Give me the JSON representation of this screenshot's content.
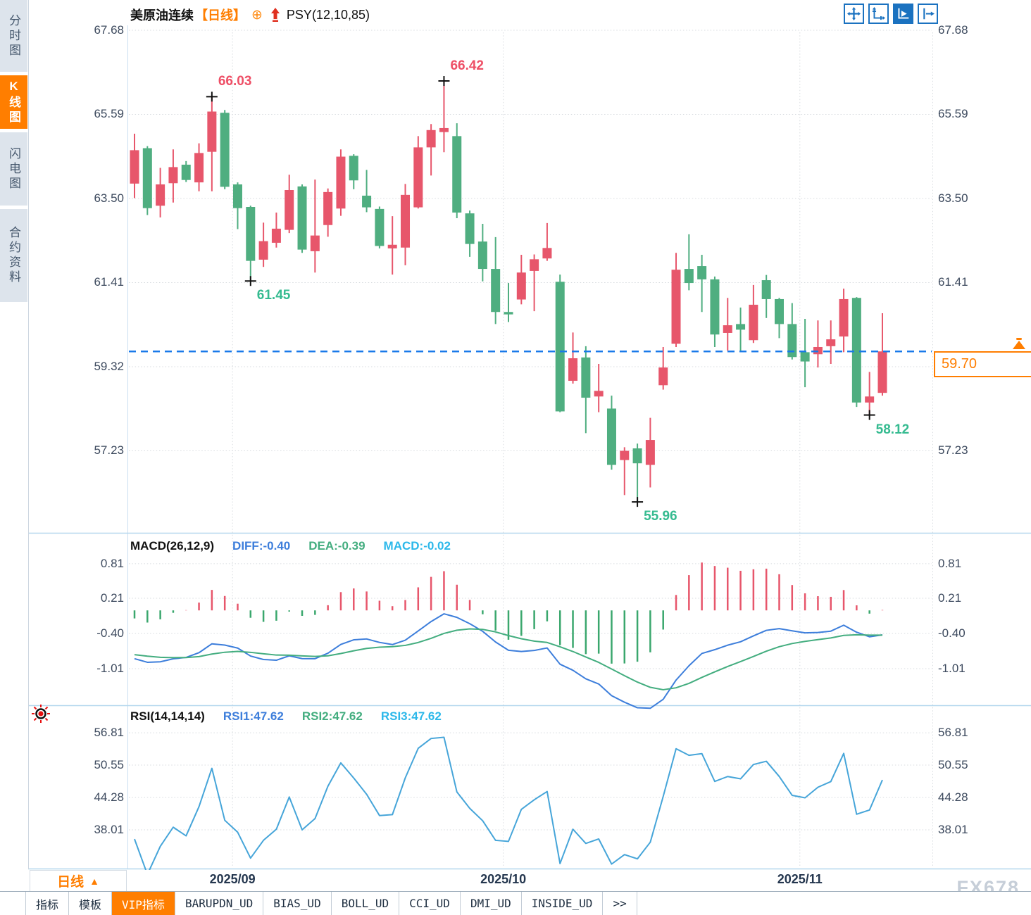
{
  "header": {
    "symbol": "美原油连续",
    "period_tag": "【日线】",
    "plus_icon": "⊕",
    "indicator": "PSY(12,10,85)"
  },
  "sidebar": {
    "items": [
      {
        "label": "分时图",
        "active": false
      },
      {
        "label": "K线图",
        "active": true
      },
      {
        "label": "闪电图",
        "active": false
      },
      {
        "label": "合约资料",
        "active": false
      }
    ]
  },
  "toolbar_icons": [
    "move-icon",
    "axis-range-icon",
    "axis-play-icon",
    "pane-shift-icon"
  ],
  "current_price": {
    "label": "59.70"
  },
  "macd_panel": {
    "title": "MACD(26,12,9)",
    "diff_label": "DIFF:-0.40",
    "dea_label": "DEA:-0.39",
    "macd_label": "MACD:-0.02"
  },
  "rsi_panel": {
    "title": "RSI(14,14,14)",
    "rsi1_label": "RSI1:47.62",
    "rsi2_label": "RSI2:47.62",
    "rsi3_label": "RSI3:47.62"
  },
  "time_axis": {
    "period_label": "日线",
    "period_arrow": "▲"
  },
  "bottom_tabs": [
    {
      "label": "指标",
      "active": false
    },
    {
      "label": "模板",
      "active": false
    },
    {
      "label": "VIP指标",
      "active": true
    },
    {
      "label": "BARUPDN_UD",
      "active": false
    },
    {
      "label": "BIAS_UD",
      "active": false
    },
    {
      "label": "BOLL_UD",
      "active": false
    },
    {
      "label": "CCI_UD",
      "active": false
    },
    {
      "label": "DMI_UD",
      "active": false
    },
    {
      "label": "INSIDE_UD",
      "active": false
    },
    {
      "label": ">>",
      "active": false
    }
  ],
  "watermark": "FX678",
  "colors": {
    "up": "#e7566b",
    "down": "#4fae80",
    "annotation_high": "#ee4f66",
    "annotation_low": "#35bb90",
    "current_line": "#1778e9",
    "accent": "#ff7e00",
    "icon_blue": "#1b72c0",
    "diff_line": "#3d7edb",
    "dea_line": "#43ad7f",
    "macd_value": "#2cb8ea",
    "rsi_line": "#46a5d9",
    "grid": "#d7dbdf",
    "separator": "#b5d7ee",
    "axis_text": "#3d4a5e"
  },
  "chart_data": {
    "type": "candlestick",
    "title": "美原油连续 日线 (US Crude Oil Continuous, Daily)",
    "y_axis_labels": [
      67.68,
      65.59,
      63.5,
      61.41,
      59.32,
      57.23
    ],
    "current_price": 59.7,
    "candles": [
      [
        63.87,
        65.11,
        63.51,
        64.7
      ],
      [
        64.75,
        64.8,
        63.09,
        63.26
      ],
      [
        63.32,
        64.26,
        63.03,
        63.85
      ],
      [
        63.88,
        64.72,
        63.4,
        64.28
      ],
      [
        64.34,
        64.43,
        63.91,
        63.96
      ],
      [
        63.9,
        64.87,
        63.68,
        64.63
      ],
      [
        64.66,
        66.03,
        63.68,
        65.66
      ],
      [
        65.63,
        65.7,
        63.73,
        63.79
      ],
      [
        63.85,
        63.9,
        62.74,
        63.26
      ],
      [
        63.29,
        63.32,
        61.45,
        61.95
      ],
      [
        61.98,
        62.9,
        61.8,
        62.44
      ],
      [
        62.4,
        63.15,
        62.28,
        62.75
      ],
      [
        62.72,
        64.09,
        62.64,
        63.71
      ],
      [
        63.8,
        63.85,
        62.15,
        62.23
      ],
      [
        62.19,
        63.97,
        61.66,
        62.58
      ],
      [
        62.84,
        63.75,
        62.55,
        63.66
      ],
      [
        63.25,
        64.72,
        63.07,
        64.54
      ],
      [
        64.56,
        64.6,
        63.73,
        63.95
      ],
      [
        63.57,
        64.21,
        63.16,
        63.28
      ],
      [
        63.24,
        63.3,
        62.26,
        62.32
      ],
      [
        62.26,
        63.06,
        61.61,
        62.35
      ],
      [
        62.28,
        63.86,
        61.84,
        63.59
      ],
      [
        63.28,
        65.05,
        63.25,
        64.77
      ],
      [
        64.77,
        65.35,
        64.07,
        65.2
      ],
      [
        65.15,
        66.42,
        64.65,
        65.25
      ],
      [
        65.05,
        65.37,
        63.01,
        63.15
      ],
      [
        63.13,
        63.2,
        62.05,
        62.37
      ],
      [
        62.43,
        62.87,
        61.44,
        61.75
      ],
      [
        61.75,
        62.54,
        60.38,
        60.68
      ],
      [
        60.68,
        61.4,
        60.43,
        60.62
      ],
      [
        60.99,
        62.1,
        60.87,
        61.66
      ],
      [
        61.7,
        62.11,
        60.7,
        61.99
      ],
      [
        62.01,
        62.89,
        61.95,
        62.27
      ],
      [
        61.43,
        61.61,
        58.19,
        58.21
      ],
      [
        58.97,
        60.17,
        58.9,
        59.53
      ],
      [
        59.55,
        59.83,
        57.67,
        58.55
      ],
      [
        58.58,
        59.39,
        58.19,
        58.72
      ],
      [
        58.28,
        58.6,
        56.76,
        56.88
      ],
      [
        57.0,
        57.32,
        56.13,
        57.23
      ],
      [
        57.29,
        57.41,
        55.96,
        56.92
      ],
      [
        56.88,
        58.05,
        56.32,
        57.5
      ],
      [
        58.86,
        59.81,
        58.75,
        59.3
      ],
      [
        59.89,
        62.15,
        59.81,
        61.73
      ],
      [
        61.75,
        62.61,
        61.22,
        61.4
      ],
      [
        61.82,
        62.1,
        60.68,
        61.49
      ],
      [
        61.49,
        61.56,
        59.81,
        60.12
      ],
      [
        60.16,
        61.03,
        59.72,
        60.35
      ],
      [
        60.38,
        60.79,
        59.68,
        60.24
      ],
      [
        59.98,
        61.35,
        59.91,
        60.86
      ],
      [
        61.47,
        61.6,
        60.53,
        61.0
      ],
      [
        61.0,
        61.03,
        60.03,
        60.38
      ],
      [
        60.38,
        60.9,
        59.5,
        59.56
      ],
      [
        59.68,
        60.51,
        58.81,
        59.45
      ],
      [
        59.63,
        60.47,
        59.3,
        59.81
      ],
      [
        59.83,
        60.47,
        59.39,
        60.0
      ],
      [
        60.07,
        61.26,
        59.68,
        61.0
      ],
      [
        61.03,
        61.05,
        58.32,
        58.43
      ],
      [
        58.43,
        59.19,
        58.12,
        58.58
      ],
      [
        58.67,
        60.65,
        58.6,
        59.7
      ]
    ],
    "annotations": [
      {
        "index": 6,
        "price": 66.03,
        "text": "66.03",
        "type": "high",
        "placement": "above"
      },
      {
        "index": 24,
        "price": 66.42,
        "text": "66.42",
        "type": "high",
        "placement": "above"
      },
      {
        "index": 9,
        "price": 61.45,
        "text": "61.45",
        "type": "low",
        "placement": "below"
      },
      {
        "index": 39,
        "price": 55.96,
        "text": "55.96",
        "type": "low",
        "placement": "below"
      },
      {
        "index": 57,
        "price": 58.12,
        "text": "58.12",
        "type": "low",
        "placement": "below"
      }
    ],
    "month_ticks": [
      {
        "pos": 7.6,
        "label": "2025/09"
      },
      {
        "pos": 28.6,
        "label": "2025/10"
      },
      {
        "pos": 51.6,
        "label": "2025/11"
      }
    ],
    "macd": {
      "params": [
        26,
        12,
        9
      ],
      "diff": -0.4,
      "dea": -0.39,
      "macd": -0.02,
      "y_axis_labels": [
        0.81,
        0.21,
        -0.4,
        -1.01
      ]
    },
    "rsi": {
      "params": [
        14,
        14,
        14
      ],
      "rsi1": 47.62,
      "rsi2": 47.62,
      "rsi3": 47.62,
      "y_axis_labels": [
        56.81,
        50.55,
        44.28,
        38.01
      ]
    }
  }
}
